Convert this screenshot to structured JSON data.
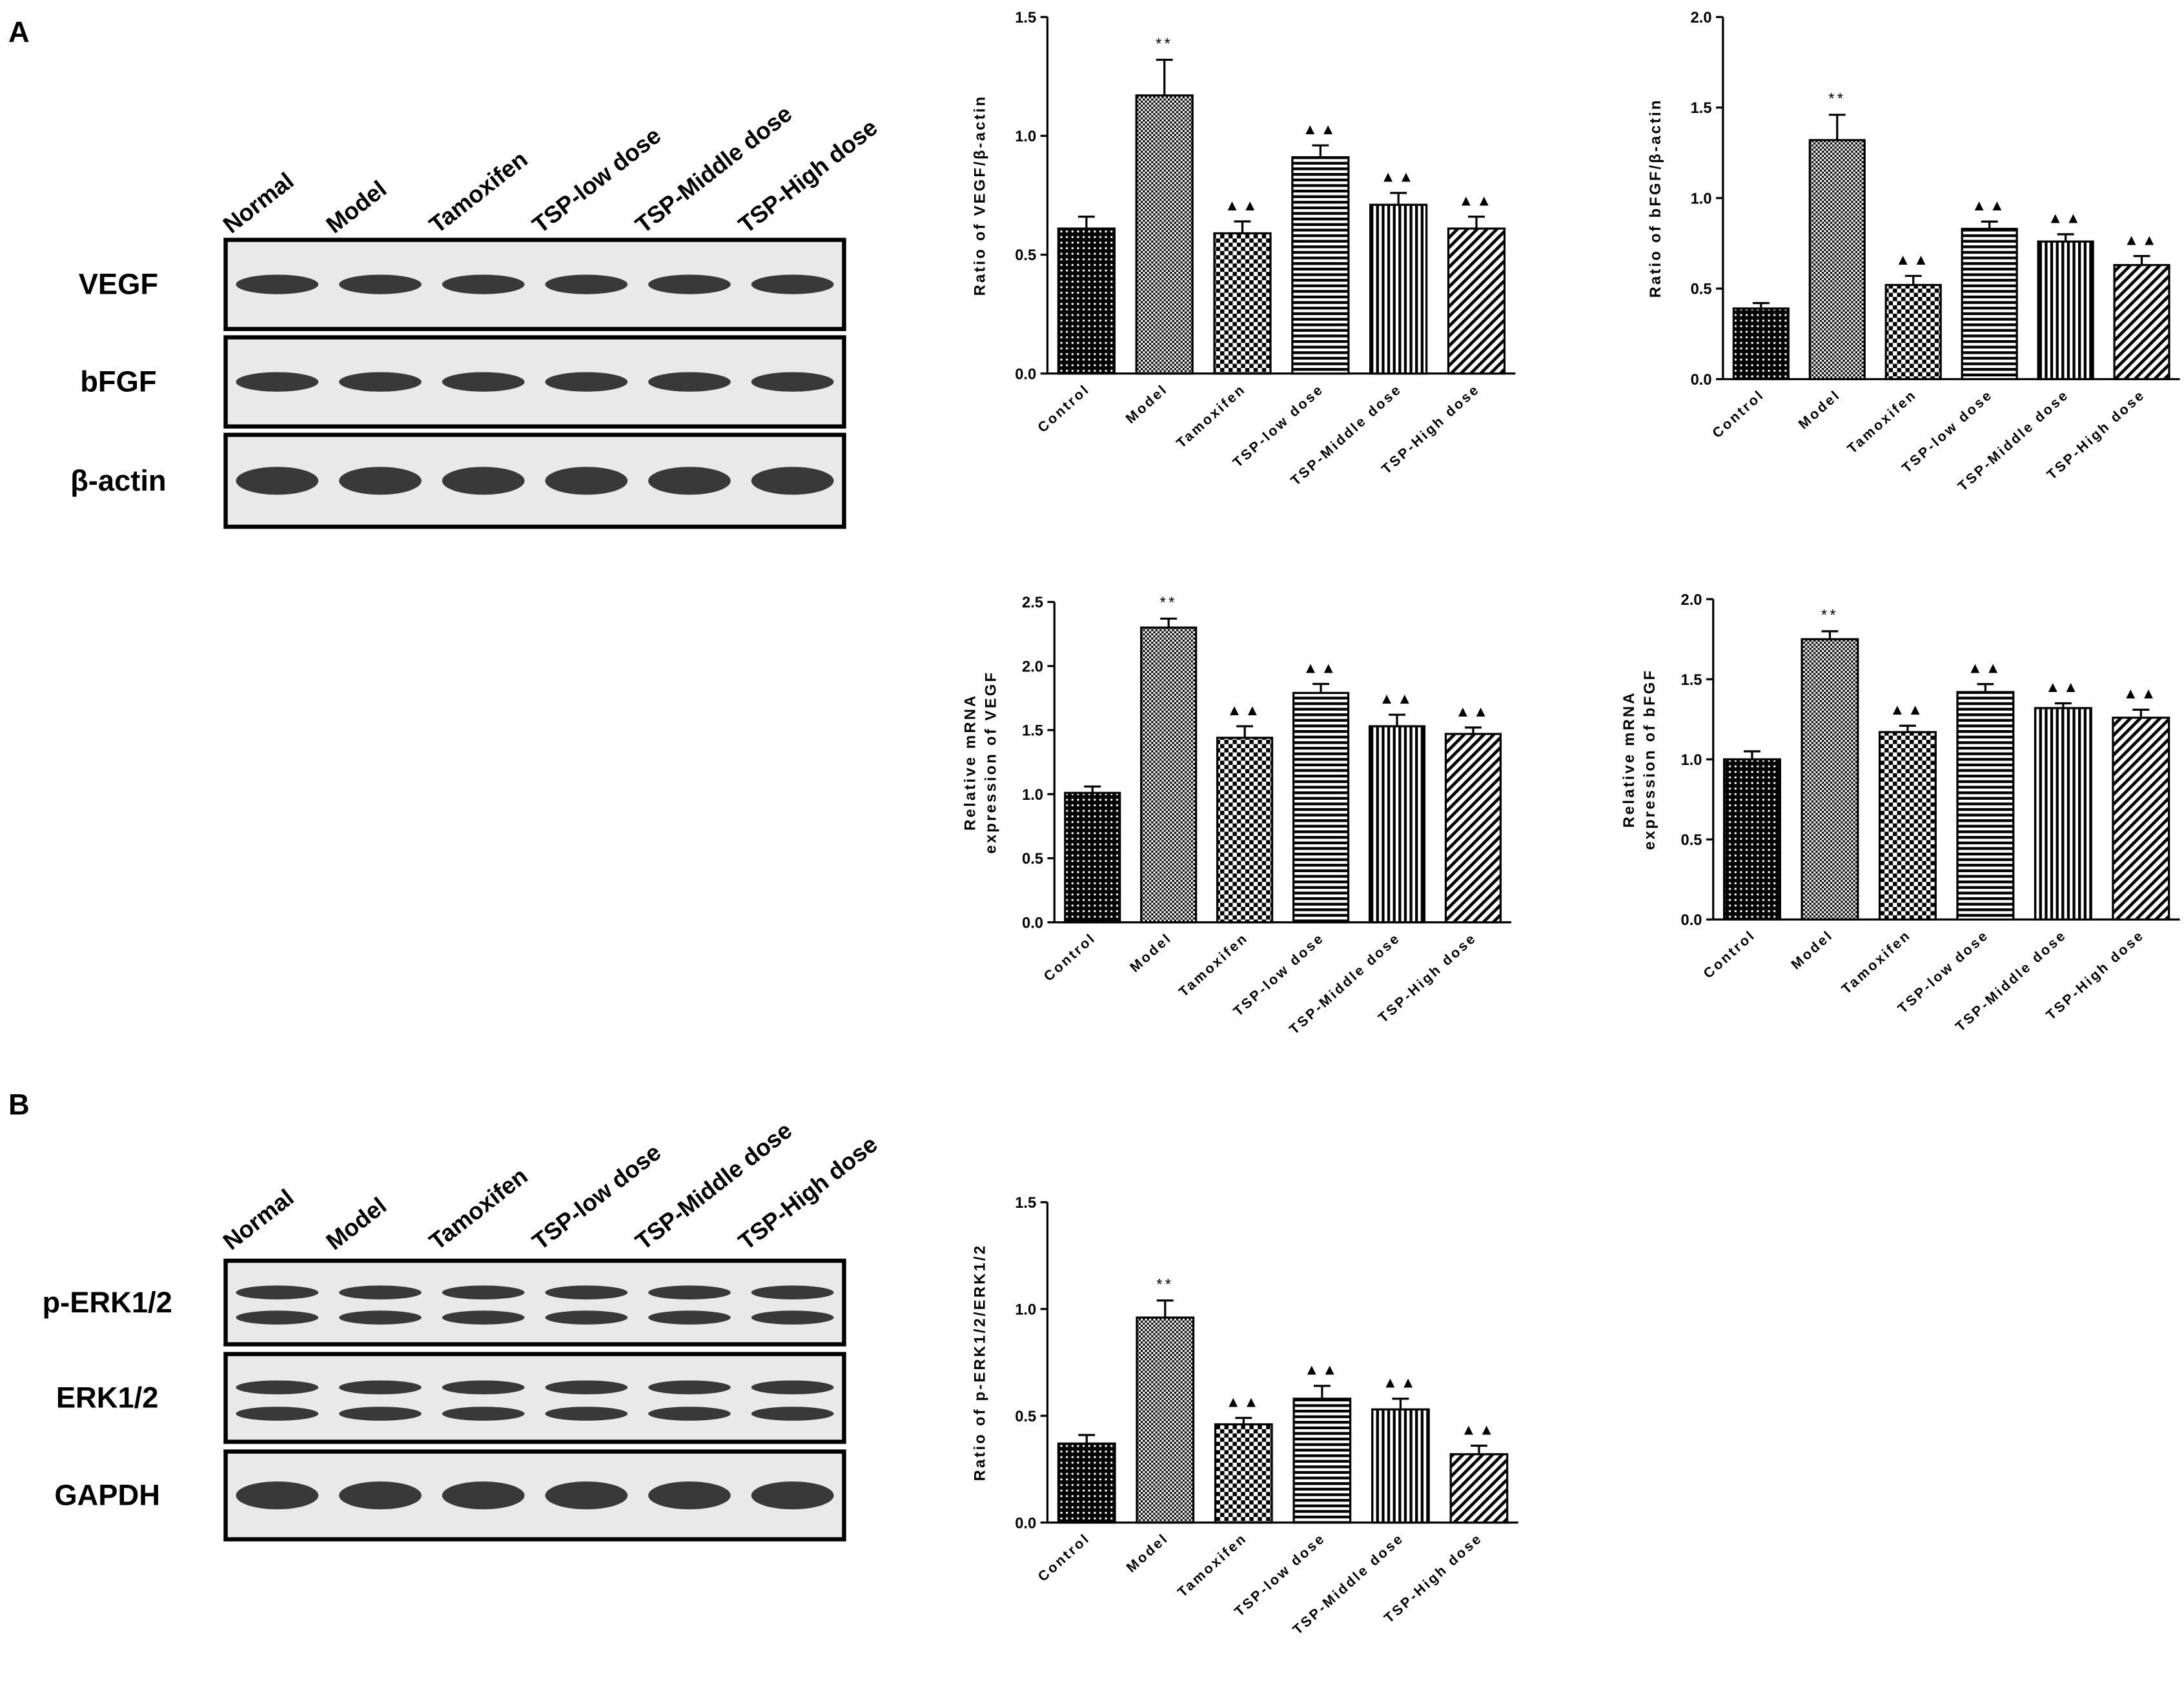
{
  "panels": [
    {
      "label": "A"
    },
    {
      "label": "B"
    }
  ],
  "blots": [
    {
      "lanes": [
        "Normal",
        "Model",
        "Tamoxifen",
        "TSP-low dose",
        "TSP-Middle dose",
        "TSP-High dose"
      ],
      "rows": [
        "VEGF",
        "bFGF",
        "β-actin"
      ]
    },
    {
      "lanes": [
        "Normal",
        "Model",
        "Tamoxifen",
        "TSP-low dose",
        "TSP-Middle dose",
        "TSP-High dose"
      ],
      "rows": [
        "p-ERK1/2",
        "ERK1/2",
        "GAPDH"
      ]
    }
  ],
  "chart_data": [
    {
      "type": "bar",
      "ylabel": "Ratio of VEGF/β-actin",
      "categories": [
        "Control",
        "Model",
        "Tamoxifen",
        "TSP-low dose",
        "TSP-Middle dose",
        "TSP-High dose"
      ],
      "values": [
        0.61,
        1.17,
        0.59,
        0.91,
        0.71,
        0.61
      ],
      "errors": [
        0.05,
        0.15,
        0.05,
        0.05,
        0.05,
        0.05
      ],
      "color": "#000000",
      "ylim": [
        0,
        1.5
      ],
      "yticks": [
        {
          "value": 0,
          "label": "0.0"
        },
        0.5,
        {
          "value": 1,
          "label": "1.0"
        },
        1.5
      ],
      "annotations": [
        {
          "category": "Model",
          "text": "**"
        },
        {
          "category": "Tamoxifen",
          "text": "▲▲"
        },
        {
          "category": "TSP-low dose",
          "text": "▲▲"
        },
        {
          "category": "TSP-Middle dose",
          "text": "▲▲"
        },
        {
          "category": "TSP-High dose",
          "text": "▲▲"
        }
      ]
    },
    {
      "type": "bar",
      "ylabel": "Ratio of bFGF/β-actin",
      "categories": [
        "Control",
        "Model",
        "Tamoxifen",
        "TSP-low dose",
        "TSP-Middle dose",
        "TSP-High dose"
      ],
      "values": [
        0.39,
        1.32,
        0.52,
        0.83,
        0.76,
        0.63
      ],
      "errors": [
        0.03,
        0.14,
        0.05,
        0.04,
        0.04,
        0.05
      ],
      "color": "#000000",
      "ylim": [
        0,
        2
      ],
      "yticks": [
        {
          "value": 0,
          "label": "0.0"
        },
        0.5,
        {
          "value": 1,
          "label": "1.0"
        },
        1.5,
        {
          "value": 2,
          "label": "2.0"
        }
      ],
      "annotations": [
        {
          "category": "Model",
          "text": "**"
        },
        {
          "category": "Tamoxifen",
          "text": "▲▲"
        },
        {
          "category": "TSP-low dose",
          "text": "▲▲"
        },
        {
          "category": "TSP-Middle dose",
          "text": "▲▲"
        },
        {
          "category": "TSP-High dose",
          "text": "▲▲"
        }
      ]
    },
    {
      "type": "bar",
      "ylabel": [
        "Relative mRNA",
        "expression of VEGF"
      ],
      "categories": [
        "Control",
        "Model",
        "Tamoxifen",
        "TSP-low dose",
        "TSP-Middle dose",
        "TSP-High dose"
      ],
      "values": [
        1.01,
        2.3,
        1.44,
        1.79,
        1.53,
        1.47
      ],
      "errors": [
        0.05,
        0.07,
        0.09,
        0.07,
        0.09,
        0.05
      ],
      "color": "#000000",
      "ylim": [
        0,
        2.5
      ],
      "yticks": [
        {
          "value": 0,
          "label": "0.0"
        },
        0.5,
        {
          "value": 1,
          "label": "1.0"
        },
        1.5,
        {
          "value": 2,
          "label": "2.0"
        },
        2.5
      ],
      "annotations": [
        {
          "category": "Model",
          "text": "**"
        },
        {
          "category": "Tamoxifen",
          "text": "▲▲"
        },
        {
          "category": "TSP-low dose",
          "text": "▲▲"
        },
        {
          "category": "TSP-Middle dose",
          "text": "▲▲"
        },
        {
          "category": "TSP-High dose",
          "text": "▲▲"
        }
      ]
    },
    {
      "type": "bar",
      "ylabel": [
        "Relative mRNA",
        "expression of bFGF"
      ],
      "categories": [
        "Control",
        "Model",
        "Tamoxifen",
        "TSP-low dose",
        "TSP-Middle dose",
        "TSP-High dose"
      ],
      "values": [
        1.0,
        1.75,
        1.17,
        1.42,
        1.32,
        1.26
      ],
      "errors": [
        0.05,
        0.05,
        0.04,
        0.05,
        0.03,
        0.05
      ],
      "color": "#000000",
      "ylim": [
        0,
        2
      ],
      "yticks": [
        {
          "value": 0,
          "label": "0.0"
        },
        0.5,
        {
          "value": 1,
          "label": "1.0"
        },
        1.5,
        {
          "value": 2,
          "label": "2.0"
        }
      ],
      "annotations": [
        {
          "category": "Model",
          "text": "**"
        },
        {
          "category": "Tamoxifen",
          "text": "▲▲"
        },
        {
          "category": "TSP-low dose",
          "text": "▲▲"
        },
        {
          "category": "TSP-Middle dose",
          "text": "▲▲"
        },
        {
          "category": "TSP-High dose",
          "text": "▲▲"
        }
      ]
    },
    {
      "type": "bar",
      "ylabel": "Ratio of p-ERK1/2/ERK1/2",
      "categories": [
        "Control",
        "Model",
        "Tamoxifen",
        "TSP-low dose",
        "TSP-Middle dose",
        "TSP-High dose"
      ],
      "values": [
        0.37,
        0.96,
        0.46,
        0.58,
        0.53,
        0.32
      ],
      "errors": [
        0.04,
        0.08,
        0.03,
        0.06,
        0.05,
        0.04
      ],
      "color": "#000000",
      "ylim": [
        0,
        1.5
      ],
      "yticks": [
        {
          "value": 0,
          "label": "0.0"
        },
        0.5,
        {
          "value": 1,
          "label": "1.0"
        },
        1.5
      ],
      "annotations": [
        {
          "category": "Model",
          "text": "**"
        },
        {
          "category": "Tamoxifen",
          "text": "▲▲"
        },
        {
          "category": "TSP-low dose",
          "text": "▲▲"
        },
        {
          "category": "TSP-Middle dose",
          "text": "▲▲"
        },
        {
          "category": "TSP-High dose",
          "text": "▲▲"
        }
      ]
    }
  ]
}
